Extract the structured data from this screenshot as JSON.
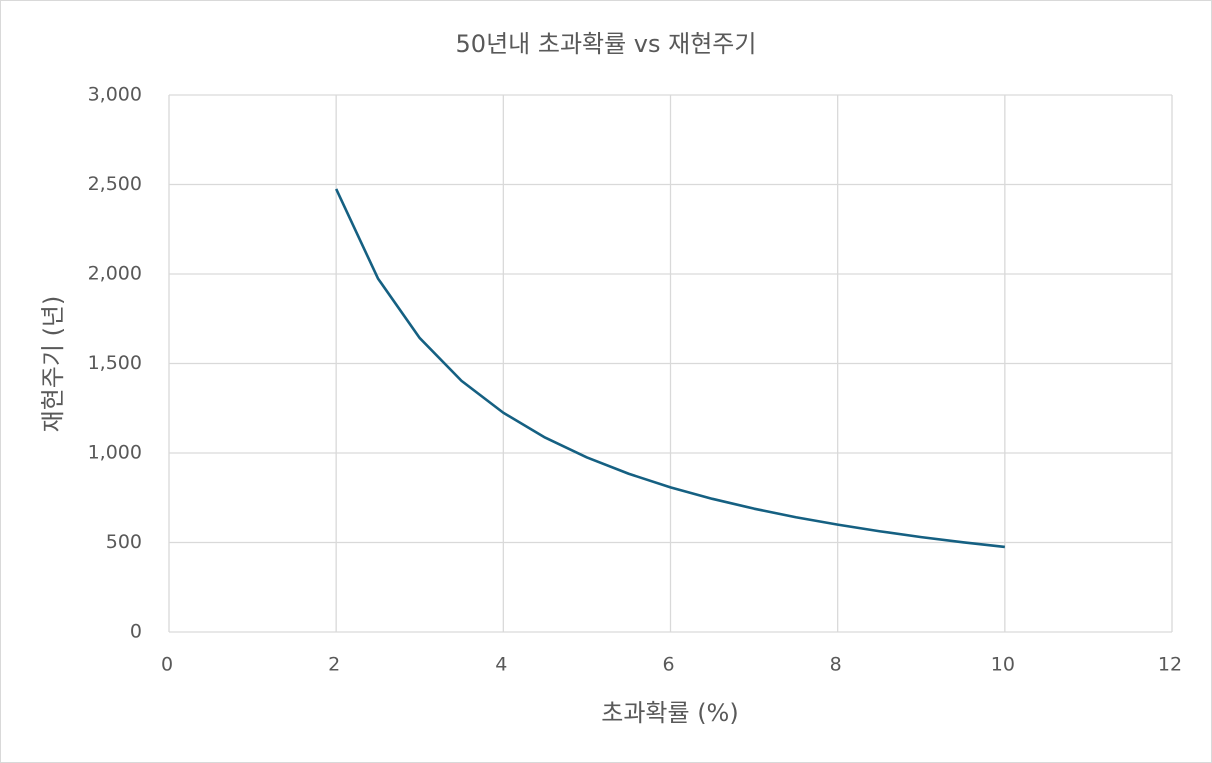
{
  "chart_data": {
    "type": "line",
    "title": "50년내 초과확률 vs 재현주기",
    "x_label": "초과확률 (%)",
    "y_label": "재현주기 (년)",
    "x": [
      2,
      2.5,
      3,
      3.5,
      4,
      4.5,
      5,
      5.5,
      6,
      6.5,
      7,
      7.5,
      8,
      8.5,
      9,
      9.5,
      10
    ],
    "series": [
      {
        "color": "#156082",
        "values": [
          2475,
          1975,
          1642,
          1403,
          1225,
          1086,
          975,
          884,
          808,
          744,
          689,
          641,
          600,
          563,
          530,
          501,
          475
        ]
      }
    ],
    "xlim": [
      0,
      12
    ],
    "xticks": [
      0,
      2,
      4,
      6,
      8,
      10,
      12
    ],
    "ylim": [
      0,
      3000
    ],
    "yticks": [
      0,
      500,
      {
        "value": 1000,
        "label": "1,000"
      },
      {
        "value": 1500,
        "label": "1,500"
      },
      {
        "value": 2000,
        "label": "2,000"
      },
      {
        "value": 2500,
        "label": "2,500"
      },
      {
        "value": 3000,
        "label": "3,000"
      }
    ],
    "grid": true
  }
}
